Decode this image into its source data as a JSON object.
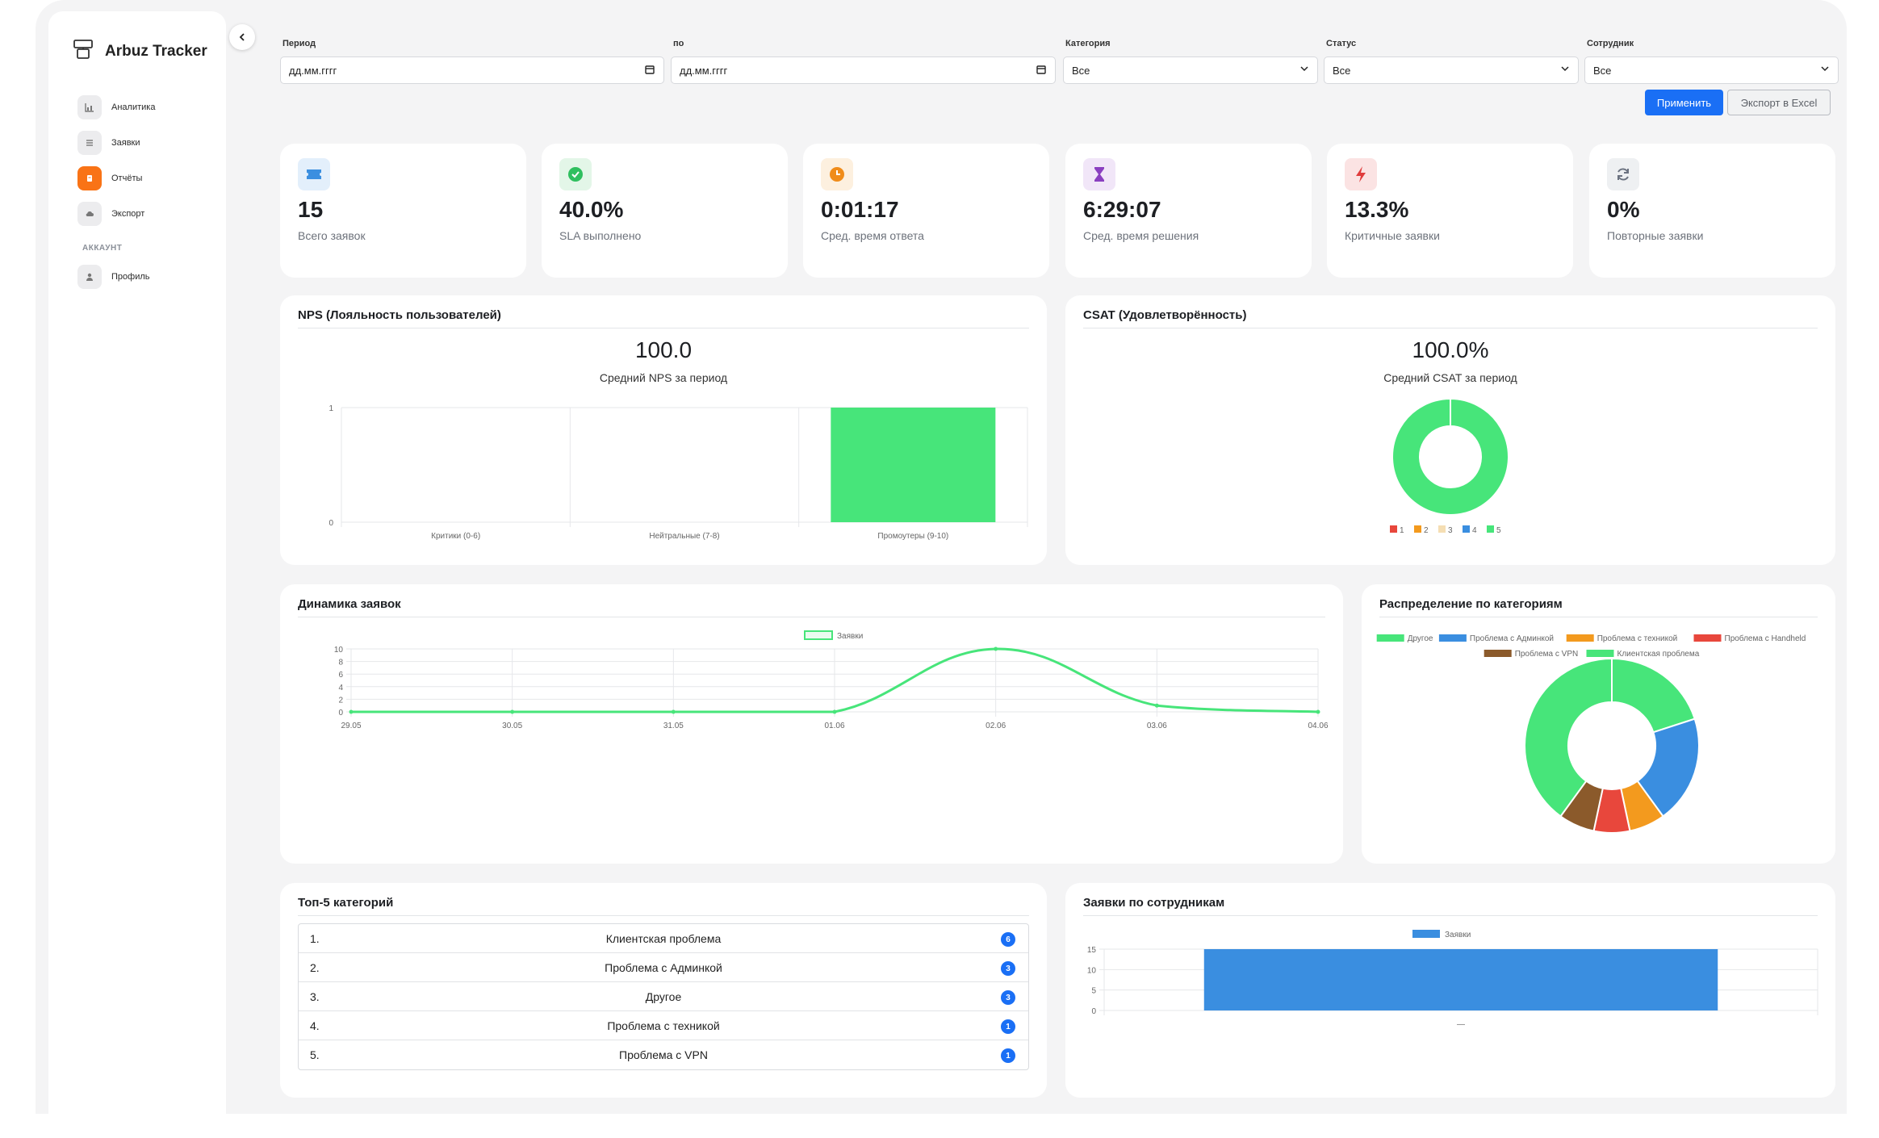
{
  "app": {
    "name": "Arbuz Tracker"
  },
  "sidebar": {
    "items": [
      {
        "label": "Аналитика",
        "icon": "chart-icon"
      },
      {
        "label": "Заявки",
        "icon": "list-icon"
      },
      {
        "label": "Отчёты",
        "icon": "report-icon",
        "active": true
      },
      {
        "label": "Экспорт",
        "icon": "cloud-icon"
      }
    ],
    "section": "АККАУНТ",
    "account_items": [
      {
        "label": "Профиль",
        "icon": "user-icon"
      }
    ]
  },
  "filters": {
    "period_label": "Период",
    "period_from": "дд.мм.гггг",
    "to_label": "по",
    "period_to": "дд.мм.гггг",
    "category_label": "Категория",
    "category_value": "Все",
    "status_label": "Статус",
    "status_value": "Все",
    "employee_label": "Сотрудник",
    "employee_value": "Все",
    "apply_label": "Применить",
    "export_label": "Экспорт в Excel"
  },
  "kpis": [
    {
      "value": "15",
      "label": "Всего заявок",
      "icon": "ticket-icon",
      "color": "#3b8fe0"
    },
    {
      "value": "40.0%",
      "label": "SLA выполнено",
      "icon": "check-circle-icon",
      "color": "#2fbf5f"
    },
    {
      "value": "0:01:17",
      "label": "Сред. время ответа",
      "icon": "clock-icon",
      "color": "#f08c1a"
    },
    {
      "value": "6:29:07",
      "label": "Сред. время решения",
      "icon": "hourglass-icon",
      "color": "#8a3fc0"
    },
    {
      "value": "13.3%",
      "label": "Критичные заявки",
      "icon": "lightning-icon",
      "color": "#e03c3c"
    },
    {
      "value": "0%",
      "label": "Повторные заявки",
      "icon": "refresh-icon",
      "color": "#6b7280"
    }
  ],
  "nps": {
    "title": "NPS (Лояльность пользователей)",
    "value": "100.0",
    "caption": "Средний NPS за период"
  },
  "csat": {
    "title": "CSAT (Удовлетворённость)",
    "value": "100.0%",
    "caption": "Средний CSAT за период"
  },
  "dynamics": {
    "title": "Динамика заявок"
  },
  "categories_panel": {
    "title": "Распределение по категориям"
  },
  "top5": {
    "title": "Топ-5 категорий",
    "rows": [
      {
        "rank": "1.",
        "name": "Клиентская проблема",
        "count": "6"
      },
      {
        "rank": "2.",
        "name": "Проблема с Админкой",
        "count": "3"
      },
      {
        "rank": "3.",
        "name": "Другое",
        "count": "3"
      },
      {
        "rank": "4.",
        "name": "Проблема с техникой",
        "count": "1"
      },
      {
        "rank": "5.",
        "name": "Проблема с VPN",
        "count": "1"
      }
    ]
  },
  "employees_panel": {
    "title": "Заявки по сотрудникам"
  },
  "chart_data": [
    {
      "type": "bar",
      "categories": [
        "Критики (0-6)",
        "Нейтральные (7-8)",
        "Промоутеры (9-10)"
      ],
      "values": [
        0,
        0,
        1
      ],
      "ylim": [
        0,
        1
      ],
      "yticks": [
        "0",
        "1"
      ],
      "color": "#47e57a",
      "grid": true
    },
    {
      "type": "pie",
      "donut": true,
      "labels": [
        "1",
        "2",
        "3",
        "4",
        "5"
      ],
      "values": [
        0,
        0,
        0,
        0,
        1
      ],
      "colors": [
        "#e8473c",
        "#f39a1e",
        "#f5deb3",
        "#3a8ee0",
        "#47e57a"
      ],
      "legend": "bottom"
    },
    {
      "type": "line",
      "x": [
        "29.05",
        "30.05",
        "31.05",
        "01.06",
        "02.06",
        "03.06",
        "04.06"
      ],
      "series": [
        {
          "name": "Заявки",
          "values": [
            0,
            0,
            0,
            0,
            10,
            1,
            0
          ],
          "color": "#47e57a"
        }
      ],
      "ylim": [
        0,
        10
      ],
      "yticks": [
        "0",
        "2",
        "4",
        "6",
        "8",
        "10"
      ],
      "legend": "top",
      "grid": true
    },
    {
      "type": "pie",
      "donut": true,
      "labels": [
        "Другое",
        "Проблема с Админкой",
        "Проблема с техникой",
        "Проблема с Handheld",
        "Проблема с VPN",
        "Клиентская проблема"
      ],
      "values": [
        3,
        3,
        1,
        1,
        1,
        6
      ],
      "colors": [
        "#47e57a",
        "#3a8ee0",
        "#f39a1e",
        "#e8473c",
        "#8b5a2b",
        "#47e57a"
      ],
      "legend": "top"
    },
    {
      "type": "bar",
      "categories": [
        "—"
      ],
      "series": [
        {
          "name": "Заявки",
          "values": [
            15
          ],
          "color": "#3a8ee0"
        }
      ],
      "ylim": [
        0,
        15
      ],
      "yticks": [
        "0",
        "5",
        "10",
        "15"
      ],
      "legend": "top",
      "grid": true
    }
  ]
}
